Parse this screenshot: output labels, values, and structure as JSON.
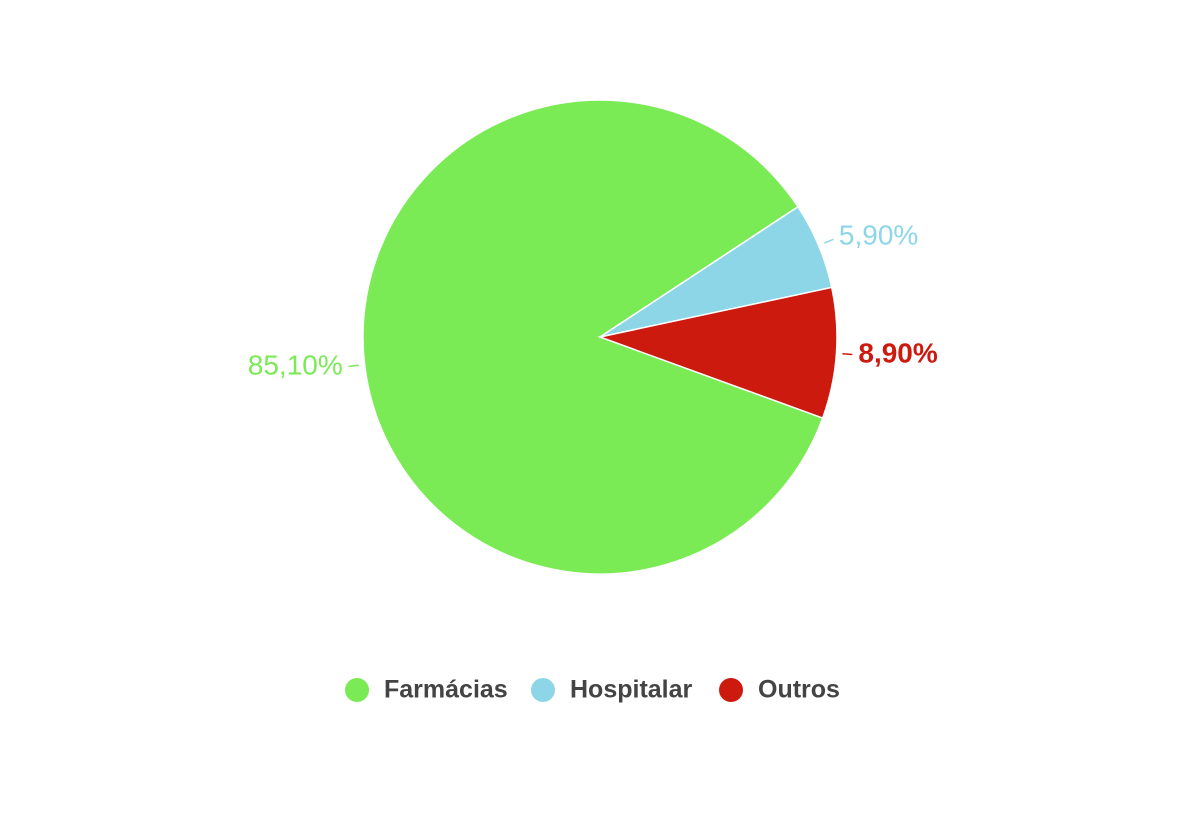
{
  "chart_data": {
    "type": "pie",
    "categories": [
      "Farmácias",
      "Hospitalar",
      "Outros"
    ],
    "values": [
      85.1,
      5.9,
      8.9
    ],
    "value_labels": [
      "85,10%",
      "5,90%",
      "8,90%"
    ],
    "colors": [
      "#7aea55",
      "#8dd6e8",
      "#cc1a0e"
    ],
    "legend": "bottom"
  }
}
